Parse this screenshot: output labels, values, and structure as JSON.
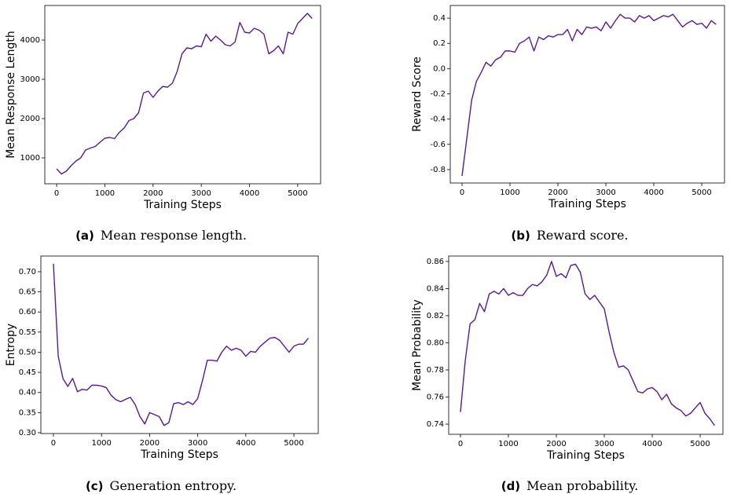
{
  "chart_data": [
    {
      "type": "line",
      "caption_label": "(a)",
      "caption": "Mean response length.",
      "xlabel": "Training Steps",
      "ylabel": "Mean Response Length",
      "xlim": [
        -246,
        5475
      ],
      "ylim": [
        340,
        4880
      ],
      "xticks": [
        0,
        1000,
        2000,
        3000,
        4000,
        5000
      ],
      "yticks": [
        1000,
        2000,
        3000,
        4000
      ],
      "x": [
        0,
        100,
        200,
        300,
        400,
        500,
        600,
        700,
        800,
        900,
        1000,
        1100,
        1200,
        1300,
        1400,
        1500,
        1600,
        1700,
        1800,
        1900,
        2000,
        2100,
        2200,
        2300,
        2400,
        2500,
        2600,
        2700,
        2800,
        2900,
        3000,
        3100,
        3200,
        3300,
        3400,
        3500,
        3600,
        3700,
        3800,
        3900,
        4000,
        4100,
        4200,
        4300,
        4400,
        4500,
        4600,
        4700,
        4800,
        4900,
        5000,
        5100,
        5200,
        5300
      ],
      "series": [
        {
          "color": "#5a189a",
          "values": [
            720,
            590,
            660,
            800,
            920,
            1000,
            1200,
            1250,
            1290,
            1400,
            1500,
            1520,
            1490,
            1650,
            1760,
            1950,
            2000,
            2150,
            2650,
            2700,
            2540,
            2700,
            2820,
            2800,
            2900,
            3200,
            3650,
            3800,
            3780,
            3850,
            3830,
            4150,
            3970,
            4100,
            4000,
            3880,
            3850,
            3950,
            4450,
            4200,
            4180,
            4300,
            4250,
            4150,
            3650,
            3730,
            3850,
            3650,
            4200,
            4150,
            4420,
            4550,
            4680,
            4550
          ]
        }
      ]
    },
    {
      "type": "line",
      "caption_label": "(b)",
      "caption": "Reward score.",
      "xlabel": "Training Steps",
      "ylabel": "Reward Score",
      "xlim": [
        -246,
        5475
      ],
      "ylim": [
        -0.906,
        0.5
      ],
      "xticks": [
        0,
        1000,
        2000,
        3000,
        4000,
        5000
      ],
      "yticks": [
        -0.8,
        -0.6,
        -0.4,
        -0.2,
        {
          "value": 0,
          "label": "0.0"
        },
        0.2,
        0.4
      ],
      "x": [
        0,
        100,
        200,
        300,
        400,
        500,
        600,
        700,
        800,
        900,
        1000,
        1100,
        1200,
        1300,
        1400,
        1500,
        1600,
        1700,
        1800,
        1900,
        2000,
        2100,
        2200,
        2300,
        2400,
        2500,
        2600,
        2700,
        2800,
        2900,
        3000,
        3100,
        3200,
        3300,
        3400,
        3500,
        3600,
        3700,
        3800,
        3900,
        4000,
        4100,
        4200,
        4300,
        4400,
        4500,
        4600,
        4700,
        4800,
        4900,
        5000,
        5100,
        5200,
        5300
      ],
      "series": [
        {
          "color": "#5a189a",
          "values": [
            -0.85,
            -0.55,
            -0.25,
            -0.1,
            -0.03,
            0.05,
            0.02,
            0.07,
            0.09,
            0.14,
            0.14,
            0.13,
            0.2,
            0.22,
            0.25,
            0.14,
            0.25,
            0.23,
            0.26,
            0.25,
            0.27,
            0.27,
            0.31,
            0.22,
            0.31,
            0.27,
            0.33,
            0.32,
            0.33,
            0.3,
            0.37,
            0.32,
            0.38,
            0.43,
            0.4,
            0.4,
            0.37,
            0.42,
            0.4,
            0.42,
            0.38,
            0.4,
            0.42,
            0.41,
            0.43,
            0.38,
            0.33,
            0.36,
            0.38,
            0.35,
            0.36,
            0.32,
            0.38,
            0.35
          ]
        }
      ]
    },
    {
      "type": "line",
      "caption_label": "(c)",
      "caption": "Generation entropy.",
      "xlabel": "Training Steps",
      "ylabel": "Entropy",
      "xlim": [
        -261,
        5506
      ],
      "ylim": [
        0.298,
        0.739
      ],
      "xticks": [
        0,
        1000,
        2000,
        3000,
        4000,
        5000
      ],
      "yticks": [
        {
          "value": 0.3,
          "label": "0.30"
        },
        0.35,
        {
          "value": 0.4,
          "label": "0.40"
        },
        0.45,
        {
          "value": 0.5,
          "label": "0.50"
        },
        0.55,
        {
          "value": 0.6,
          "label": "0.60"
        },
        0.65,
        {
          "value": 0.7,
          "label": "0.70"
        }
      ],
      "x": [
        0,
        100,
        200,
        300,
        400,
        500,
        600,
        700,
        800,
        900,
        1000,
        1100,
        1200,
        1300,
        1400,
        1500,
        1600,
        1700,
        1800,
        1900,
        2000,
        2100,
        2200,
        2300,
        2400,
        2500,
        2600,
        2700,
        2800,
        2900,
        3000,
        3100,
        3200,
        3300,
        3400,
        3500,
        3600,
        3700,
        3800,
        3900,
        4000,
        4100,
        4200,
        4300,
        4400,
        4500,
        4600,
        4700,
        4800,
        4900,
        5000,
        5100,
        5200,
        5300
      ],
      "series": [
        {
          "color": "#5a189a",
          "values": [
            0.72,
            0.49,
            0.434,
            0.415,
            0.435,
            0.402,
            0.408,
            0.406,
            0.418,
            0.418,
            0.416,
            0.412,
            0.393,
            0.382,
            0.377,
            0.383,
            0.388,
            0.37,
            0.34,
            0.322,
            0.35,
            0.345,
            0.34,
            0.318,
            0.325,
            0.372,
            0.375,
            0.37,
            0.377,
            0.37,
            0.385,
            0.43,
            0.48,
            0.48,
            0.478,
            0.5,
            0.515,
            0.505,
            0.51,
            0.505,
            0.49,
            0.502,
            0.5,
            0.515,
            0.525,
            0.535,
            0.537,
            0.53,
            0.515,
            0.5,
            0.515,
            0.52,
            0.52,
            0.535
          ]
        }
      ]
    },
    {
      "type": "line",
      "caption_label": "(d)",
      "caption": "Mean probability.",
      "xlabel": "Training Steps",
      "ylabel": "Mean Probability",
      "xlim": [
        -246,
        5475
      ],
      "ylim": [
        0.7325,
        0.864
      ],
      "xticks": [
        0,
        1000,
        2000,
        3000,
        4000,
        5000
      ],
      "yticks": [
        0.74,
        0.76,
        0.78,
        {
          "value": 0.8,
          "label": "0.80"
        },
        0.82,
        0.84,
        0.86
      ],
      "x": [
        0,
        100,
        200,
        300,
        400,
        500,
        600,
        700,
        800,
        900,
        1000,
        1100,
        1200,
        1300,
        1400,
        1500,
        1600,
        1700,
        1800,
        1900,
        2000,
        2100,
        2200,
        2300,
        2400,
        2500,
        2600,
        2700,
        2800,
        2900,
        3000,
        3100,
        3200,
        3300,
        3400,
        3500,
        3600,
        3700,
        3800,
        3900,
        4000,
        4100,
        4200,
        4300,
        4400,
        4500,
        4600,
        4700,
        4800,
        4900,
        5000,
        5100,
        5200,
        5300
      ],
      "series": [
        {
          "color": "#5a189a",
          "values": [
            0.749,
            0.787,
            0.814,
            0.817,
            0.829,
            0.823,
            0.836,
            0.838,
            0.836,
            0.84,
            0.835,
            0.837,
            0.835,
            0.835,
            0.84,
            0.843,
            0.842,
            0.845,
            0.85,
            0.86,
            0.849,
            0.851,
            0.848,
            0.857,
            0.858,
            0.852,
            0.836,
            0.832,
            0.835,
            0.83,
            0.825,
            0.808,
            0.793,
            0.782,
            0.783,
            0.78,
            0.772,
            0.764,
            0.763,
            0.766,
            0.767,
            0.764,
            0.758,
            0.762,
            0.755,
            0.752,
            0.75,
            0.746,
            0.748,
            0.752,
            0.756,
            0.748,
            0.744,
            0.739
          ]
        }
      ]
    }
  ]
}
